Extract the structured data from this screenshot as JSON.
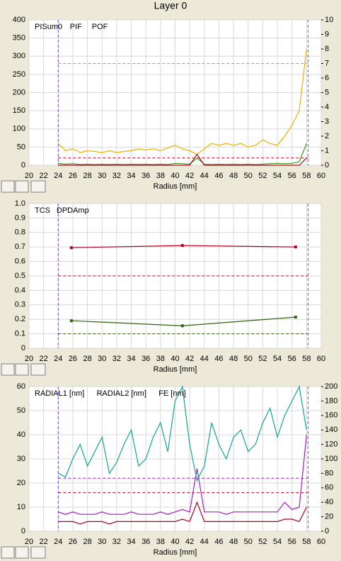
{
  "page_title": "Layer 0",
  "chart_data": [
    {
      "type": "line",
      "xlabel": "Radius [mm]",
      "x": [
        24,
        25,
        26,
        27,
        28,
        29,
        30,
        31,
        32,
        33,
        34,
        35,
        36,
        37,
        38,
        39,
        40,
        41,
        42,
        43,
        44,
        45,
        46,
        47,
        48,
        49,
        50,
        51,
        52,
        53,
        54,
        55,
        56,
        57,
        58
      ],
      "series": [
        {
          "name": "PISum0",
          "color": "#f0b000",
          "values": [
            60,
            40,
            45,
            35,
            40,
            38,
            35,
            40,
            35,
            38,
            40,
            45,
            42,
            45,
            40,
            48,
            55,
            45,
            40,
            30,
            45,
            60,
            55,
            60,
            55,
            60,
            50,
            55,
            70,
            60,
            55,
            80,
            110,
            150,
            320
          ]
        },
        {
          "name": "PIF",
          "color": "#30a020",
          "values": [
            5,
            3,
            4,
            2,
            3,
            2,
            3,
            2,
            3,
            2,
            3,
            2,
            3,
            2,
            3,
            2,
            5,
            4,
            3,
            20,
            3,
            2,
            3,
            2,
            3,
            2,
            3,
            2,
            3,
            4,
            5,
            4,
            5,
            10,
            60
          ]
        },
        {
          "name": "POF",
          "color": "#c00020",
          "values": [
            0,
            0,
            0,
            0,
            0,
            0,
            0,
            0,
            0,
            0,
            0,
            0,
            0,
            0,
            0,
            0,
            0,
            0,
            0,
            30,
            0,
            0,
            0,
            0,
            0,
            0,
            0,
            0,
            0,
            0,
            0,
            0,
            0,
            0,
            20
          ]
        }
      ],
      "hlines": [
        {
          "value": 280,
          "color": "#c0a030"
        },
        {
          "value": 20,
          "color": "#c00020"
        }
      ],
      "vlines": [
        {
          "value": 24,
          "color": "#8040ff"
        },
        {
          "value": 58.2,
          "color": "#8040ff"
        }
      ],
      "xlim": [
        20,
        60
      ],
      "xticks": [
        20,
        22,
        24,
        26,
        28,
        30,
        32,
        34,
        36,
        38,
        40,
        42,
        44,
        46,
        48,
        50,
        52,
        54,
        56,
        58,
        60
      ],
      "ylim": [
        0,
        400
      ],
      "yticks": [
        0,
        50,
        100,
        150,
        200,
        250,
        300,
        350,
        400
      ],
      "y2lim": [
        0,
        10
      ],
      "y2ticks": [
        0,
        1,
        2,
        3,
        4,
        5,
        6,
        7,
        8,
        9,
        10
      ],
      "grid": true
    },
    {
      "type": "line",
      "xlabel": "Radius [mm]",
      "x": [
        25.8,
        41,
        56.5
      ],
      "series": [
        {
          "name": "TCS",
          "color": "#306010",
          "values": [
            0.19,
            0.155,
            0.215
          ]
        },
        {
          "name": "DPDAmp",
          "color": "#b00020",
          "values": [
            0.695,
            0.71,
            0.7
          ]
        }
      ],
      "markers": true,
      "hlines": [
        {
          "value": 0.5,
          "color": "#c00020"
        },
        {
          "value": 0.1,
          "color": "#306010"
        }
      ],
      "vlines": [
        {
          "value": 24,
          "color": "#8040ff"
        },
        {
          "value": 58.2,
          "color": "#8040ff"
        }
      ],
      "xlim": [
        20,
        60
      ],
      "xticks": [
        20,
        22,
        24,
        26,
        28,
        30,
        32,
        34,
        36,
        38,
        40,
        42,
        44,
        46,
        48,
        50,
        52,
        54,
        56,
        58,
        60
      ],
      "ylim": [
        0,
        1
      ],
      "yticks": [
        0,
        0.1,
        0.2,
        0.3,
        0.4,
        0.5,
        0.6,
        0.7,
        0.8,
        0.9,
        {
          "value": 1,
          "label": "1.0"
        }
      ],
      "grid": true
    },
    {
      "type": "line",
      "xlabel": "Radius [mm]",
      "x": [
        24,
        25,
        26,
        27,
        28,
        29,
        30,
        31,
        32,
        33,
        34,
        35,
        36,
        37,
        38,
        39,
        40,
        41,
        42,
        43,
        44,
        45,
        46,
        47,
        48,
        49,
        50,
        51,
        52,
        53,
        54,
        55,
        56,
        57,
        58
      ],
      "series": [
        {
          "name": "RADIAL1 [nm]",
          "color": "#a020c0",
          "values": [
            8,
            7,
            8,
            7,
            7,
            7,
            8,
            7,
            7,
            7,
            8,
            7,
            7,
            7,
            8,
            7,
            8,
            9,
            8,
            26,
            8,
            8,
            8,
            7,
            8,
            8,
            8,
            8,
            8,
            8,
            8,
            12,
            9,
            10,
            40
          ]
        },
        {
          "name": "RADIAL2 [nm]",
          "color": "#b00020",
          "values": [
            4,
            4,
            4,
            3,
            4,
            4,
            4,
            3,
            4,
            4,
            4,
            4,
            4,
            4,
            4,
            4,
            4,
            5,
            4,
            12,
            4,
            4,
            4,
            4,
            4,
            4,
            4,
            4,
            4,
            4,
            4,
            5,
            5,
            4,
            10
          ]
        },
        {
          "name": "FE [nm]",
          "color": "#10a890",
          "axis": "y2",
          "values": [
            80,
            75,
            100,
            120,
            90,
            110,
            130,
            80,
            95,
            120,
            140,
            90,
            100,
            130,
            150,
            110,
            180,
            200,
            120,
            70,
            90,
            150,
            120,
            100,
            130,
            140,
            110,
            120,
            150,
            170,
            130,
            160,
            180,
            200,
            140
          ]
        }
      ],
      "hlines": [
        {
          "value": 22,
          "color": "#a020c0"
        },
        {
          "value": 16,
          "color": "#c00020"
        }
      ],
      "vlines": [
        {
          "value": 24,
          "color": "#8040ff"
        },
        {
          "value": 58.2,
          "color": "#8040ff"
        }
      ],
      "xlim": [
        20,
        60
      ],
      "xticks": [
        20,
        22,
        24,
        26,
        28,
        30,
        32,
        34,
        36,
        38,
        40,
        42,
        44,
        46,
        48,
        50,
        52,
        54,
        56,
        58,
        60
      ],
      "ylim": [
        0,
        60
      ],
      "yticks": [
        0,
        10,
        20,
        30,
        40,
        50,
        60
      ],
      "y2lim": [
        0,
        200
      ],
      "y2ticks": [
        0,
        20,
        40,
        60,
        80,
        100,
        120,
        140,
        160,
        180,
        200
      ],
      "grid": true
    }
  ]
}
